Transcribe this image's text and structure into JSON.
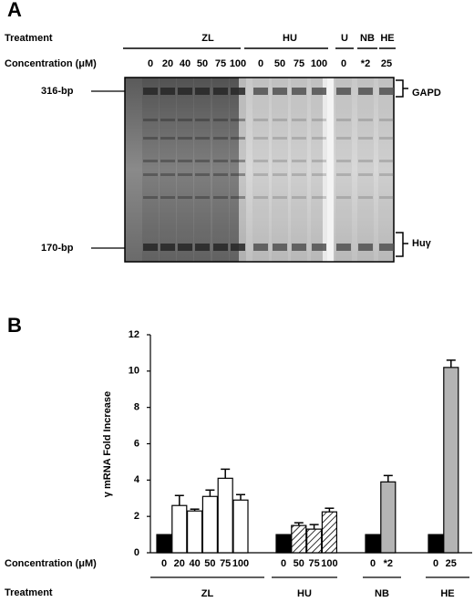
{
  "panel_a": {
    "label": "A",
    "treatment_label": "Treatment",
    "concentration_label": "Concentration (μM)",
    "groups": [
      {
        "name": "ZL",
        "concentrations": [
          "0",
          "20",
          "40",
          "50",
          "75",
          "100"
        ]
      },
      {
        "name": "HU",
        "concentrations": [
          "0",
          "50",
          "75",
          "100"
        ]
      },
      {
        "name": "U",
        "concentrations": [
          "0"
        ]
      },
      {
        "name": "NB",
        "concentrations": [
          "*2"
        ]
      },
      {
        "name": "HE",
        "concentrations": [
          "25"
        ]
      }
    ],
    "markers": [
      "316-bp",
      "170-bp"
    ],
    "genes": [
      "GAPD",
      "Huγ"
    ]
  },
  "chart_data": {
    "type": "bar",
    "panel_label": "B",
    "y_label": "γ mRNA  Fold Increase",
    "concentration_label": "Concentration (μM)",
    "treatment_label": "Treatment",
    "ylim": [
      0,
      12
    ],
    "yticks": [
      0,
      2,
      4,
      6,
      8,
      10,
      12
    ],
    "groups": [
      {
        "name": "ZL",
        "categories": [
          "0",
          "20",
          "40",
          "50",
          "75",
          "100"
        ],
        "values": [
          1,
          2.6,
          2.3,
          3.1,
          4.1,
          2.9
        ],
        "errors": [
          null,
          0.55,
          0.1,
          0.35,
          0.5,
          0.3
        ],
        "fills": [
          "#000000",
          "#ffffff",
          "#ffffff",
          "#ffffff",
          "#ffffff",
          "#ffffff"
        ]
      },
      {
        "name": "HU",
        "categories": [
          "0",
          "50",
          "75",
          "100"
        ],
        "values": [
          1,
          1.5,
          1.3,
          2.25
        ],
        "errors": [
          null,
          0.15,
          0.25,
          0.2
        ],
        "fills": [
          "#000000",
          "hatch",
          "hatch",
          "hatch"
        ]
      },
      {
        "name": "NB",
        "categories": [
          "0",
          "*2"
        ],
        "values": [
          1,
          3.9
        ],
        "errors": [
          null,
          0.35
        ],
        "fills": [
          "#000000",
          "#b4b4b4"
        ]
      },
      {
        "name": "HE",
        "categories": [
          "0",
          "25"
        ],
        "values": [
          1,
          10.2
        ],
        "errors": [
          null,
          0.4
        ],
        "fills": [
          "#000000",
          "#b4b4b4"
        ]
      }
    ]
  }
}
